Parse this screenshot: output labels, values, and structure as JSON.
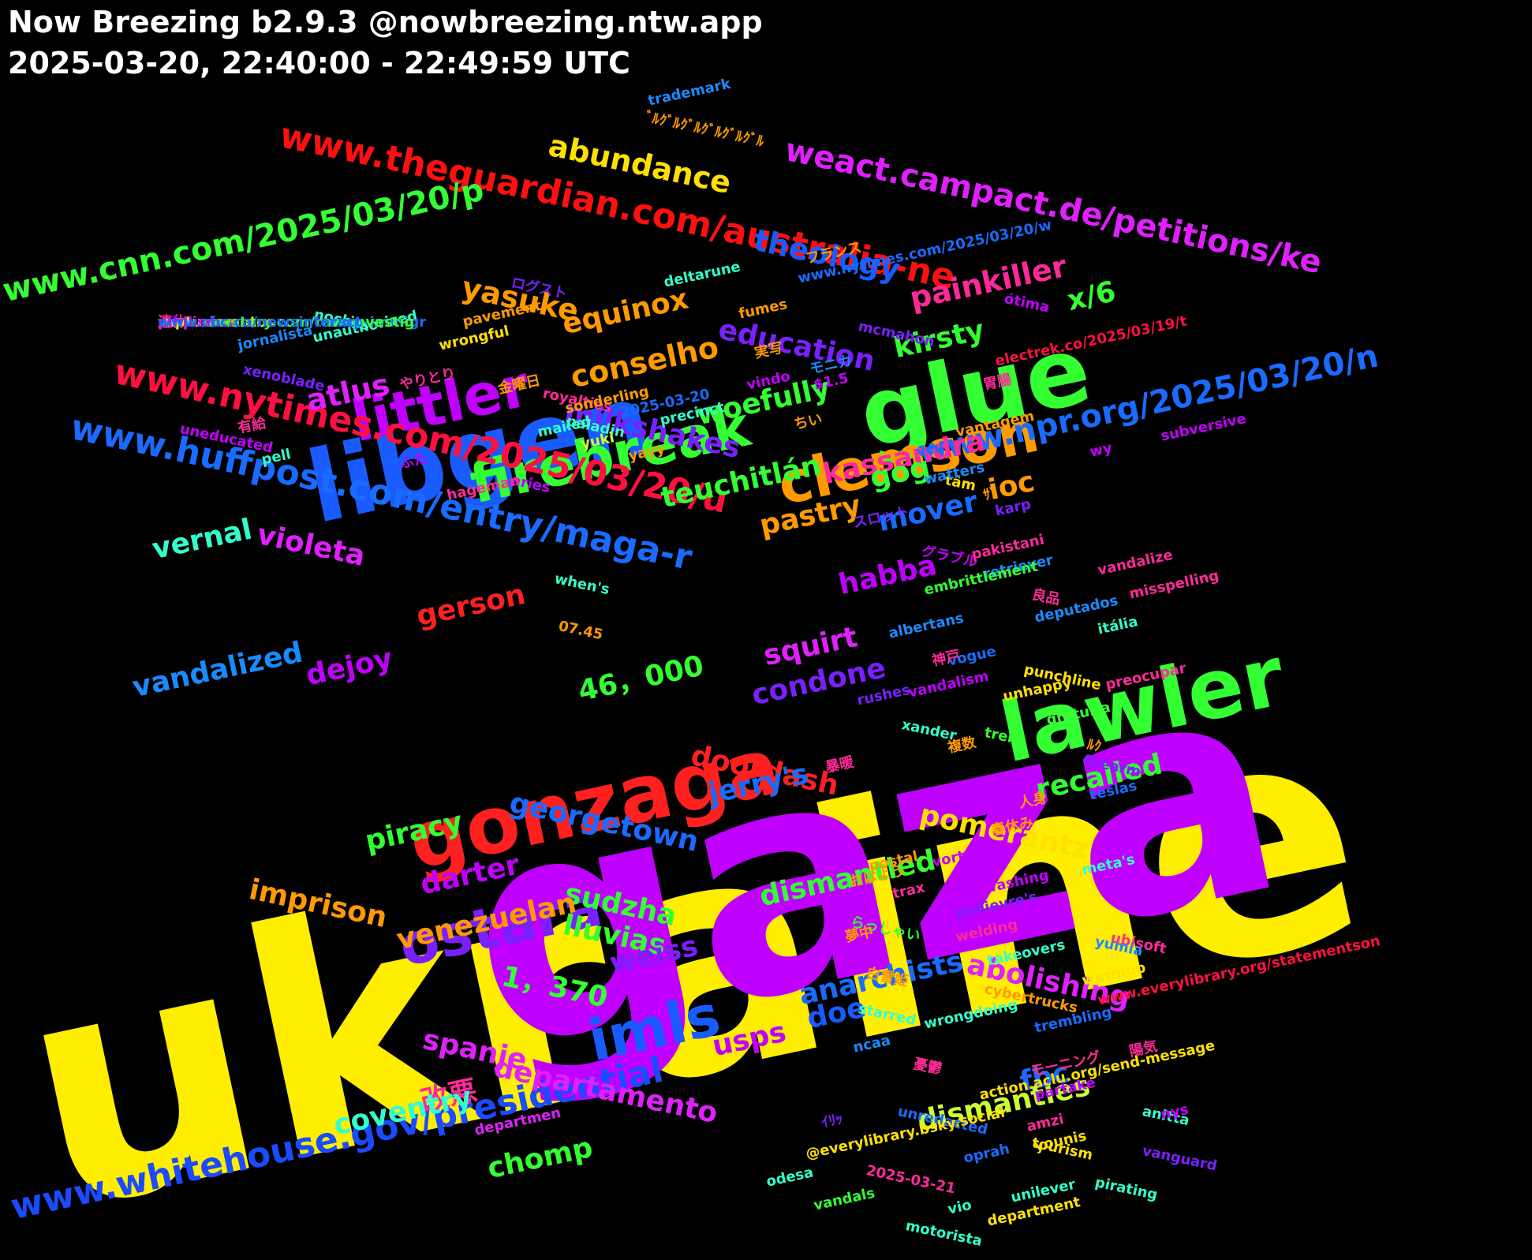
{
  "header": {
    "title": "Now Breezing b2.9.3 @nowbreezing.ntw.app",
    "time_range": "2025-03-20, 22:40:00 - 22:49:59 UTC"
  },
  "words": [
    {
      "t": "ukraine",
      "c": "#ffee00"
    },
    {
      "t": "gaza",
      "c": "#c000ff"
    },
    {
      "t": "libgen",
      "c": "#1a5bff"
    },
    {
      "t": "glue",
      "c": "#33ff33"
    },
    {
      "t": "lawler",
      "c": "#33ff33"
    },
    {
      "t": "gonzaga",
      "c": "#ff2020"
    },
    {
      "t": "clemson",
      "c": "#ff9a00"
    },
    {
      "t": "firebreak",
      "c": "#33ff33"
    },
    {
      "t": "littler",
      "c": "#c000ff"
    },
    {
      "t": "imls",
      "c": "#1a5bff"
    },
    {
      "t": "ostara",
      "c": "#7a20ff"
    },
    {
      "t": "www.theguardian.com/australia-ne",
      "c": "#ff1010"
    },
    {
      "t": "www.whitehouse.gov/presidential",
      "c": "#1a4bff"
    },
    {
      "t": "www.nytimes.com/2025/03/20/u",
      "c": "#ff1040"
    },
    {
      "t": "www.huffpost.com/entry/maga-r",
      "c": "#1a6bff"
    },
    {
      "t": "www.npr.org/2025/03/20/n",
      "c": "#1a6bff"
    },
    {
      "t": "www.cnn.com/2025/03/20/p",
      "c": "#33ff33"
    },
    {
      "t": "weact.campact.de/petitions/ke",
      "c": "#e020ff"
    },
    {
      "t": "abundance",
      "c": "#ffe000"
    },
    {
      "t": "theology",
      "c": "#1a5bff"
    },
    {
      "t": "painkiller",
      "c": "#ff2a9a"
    },
    {
      "t": "kirsty",
      "c": "#33ff33"
    },
    {
      "t": "x/6",
      "c": "#33ff33"
    },
    {
      "t": "yasuke",
      "c": "#ff9a00"
    },
    {
      "t": "equinox",
      "c": "#ff9a00"
    },
    {
      "t": "atlus",
      "c": "#e020ff"
    },
    {
      "t": "conselho",
      "c": "#ff9a00"
    },
    {
      "t": "education",
      "c": "#7a20ff"
    },
    {
      "t": "woefully",
      "c": "#33ff33"
    },
    {
      "t": "kassandra",
      "c": "#ff2a9a"
    },
    {
      "t": "gog",
      "c": "#33ff33"
    },
    {
      "t": "ioc",
      "c": "#ff9a00"
    },
    {
      "t": "milkshakes",
      "c": "#7a20ff"
    },
    {
      "t": "teuchitlán",
      "c": "#33ff33"
    },
    {
      "t": "mover",
      "c": "#1a6bff"
    },
    {
      "t": "vernal",
      "c": "#33ffcc"
    },
    {
      "t": "violeta",
      "c": "#e020ff"
    },
    {
      "t": "pastry",
      "c": "#ff9a00"
    },
    {
      "t": "habba",
      "c": "#c000ff"
    },
    {
      "t": "squirt",
      "c": "#e020ff"
    },
    {
      "t": "vandalized",
      "c": "#1a8bff"
    },
    {
      "t": "gerson",
      "c": "#ff2020"
    },
    {
      "t": "dejoy",
      "c": "#c000ff"
    },
    {
      "t": "46，000",
      "c": "#33ff33"
    },
    {
      "t": "condone",
      "c": "#7a20ff"
    },
    {
      "t": "doordash",
      "c": "#ff2020"
    },
    {
      "t": "jerry's",
      "c": "#1a6bff"
    },
    {
      "t": "georgetown",
      "c": "#1a6bff"
    },
    {
      "t": "recalled",
      "c": "#33ff33"
    },
    {
      "t": "piracy",
      "c": "#33ff33"
    },
    {
      "t": "imprison",
      "c": "#ff9a00"
    },
    {
      "t": "darter",
      "c": "#c000ff"
    },
    {
      "t": "sudzha",
      "c": "#33ff33"
    },
    {
      "t": "dismantled",
      "c": "#33ff33"
    },
    {
      "t": "pomerantz",
      "c": "#ffe000"
    },
    {
      "t": "venezuelan",
      "c": "#ff9a00"
    },
    {
      "t": "lluvias",
      "c": "#33ff33"
    },
    {
      "t": "weiss",
      "c": "#7a20ff"
    },
    {
      "t": "1，370",
      "c": "#33ff33"
    },
    {
      "t": "anarchists",
      "c": "#1a6bff"
    },
    {
      "t": "abolishing",
      "c": "#e020ff"
    },
    {
      "t": "usps",
      "c": "#c000ff"
    },
    {
      "t": "doe",
      "c": "#1a5bff"
    },
    {
      "t": "spanje",
      "c": "#e020ff"
    },
    {
      "t": "改悪",
      "c": "#ff2a9a"
    },
    {
      "t": "departamento",
      "c": "#e020ff"
    },
    {
      "t": "dismantles",
      "c": "#ccff33"
    },
    {
      "t": "fbc",
      "c": "#1a6bff"
    },
    {
      "t": "coventry",
      "c": "#33ffcc"
    },
    {
      "t": "chomp",
      "c": "#33ff33"
    },
    {
      "t": "trademark",
      "c": "#1a8bff"
    },
    {
      "t": "ﾞﾙｸﾞﾙｸﾞﾙｸﾞﾙｸﾞﾙｸﾞﾙ",
      "c": "#ff9a00"
    },
    {
      "t": "www.nytimes.com/2025/03/20/w",
      "c": "#1a6bff"
    },
    {
      "t": "ótima",
      "c": "#c000ff"
    },
    {
      "t": "フランス",
      "c": "#ff9a00"
    },
    {
      "t": "deltarune",
      "c": "#33ffcc"
    },
    {
      "t": "mcmahon",
      "c": "#7a20ff"
    },
    {
      "t": "electrek.co/2025/03/19/t",
      "c": "#ff1040"
    },
    {
      "t": "noches",
      "c": "#33ffcc"
    },
    {
      "t": "ログスト",
      "c": "#7a20ff"
    },
    {
      "t": "fumes",
      "c": "#ff9a00"
    },
    {
      "t": "unauthorized",
      "c": "#33ffcc"
    },
    {
      "t": "jornalista",
      "c": "#1a8bff"
    },
    {
      "t": "wrongful",
      "c": "#ffe000"
    },
    {
      "t": "pavement",
      "c": "#ff9a00"
    },
    {
      "t": "実写",
      "c": "#ff9a00"
    },
    {
      "t": "xenoblade",
      "c": "#7a20ff"
    },
    {
      "t": "モニカ",
      "c": "#1a8bff"
    },
    {
      "t": "$1.5",
      "c": "#c000ff"
    },
    {
      "t": "vindo",
      "c": "#c000ff"
    },
    {
      "t": "胃腸",
      "c": "#ff2a9a"
    },
    {
      "t": "やりとり",
      "c": "#ff2a9a"
    },
    {
      "t": "金曜日",
      "c": "#ff9a00"
    },
    {
      "t": "royalties",
      "c": "#ff2a9a"
    },
    {
      "t": "sonderling",
      "c": "#ff9a00"
    },
    {
      "t": "paladin",
      "c": "#33ffcc"
    },
    {
      "t": "有給",
      "c": "#ff2a9a"
    },
    {
      "t": "ちい",
      "c": "#ff9a00"
    },
    {
      "t": "2025-03-20",
      "c": "#1a6bff"
    },
    {
      "t": "subversive",
      "c": "#c000ff"
    },
    {
      "t": "uneducated",
      "c": "#c000ff"
    },
    {
      "t": "mailed",
      "c": "#33ffcc"
    },
    {
      "t": "precinct",
      "c": "#33ffcc"
    },
    {
      "t": "vantagem",
      "c": "#ff9a00"
    },
    {
      "t": "yuki",
      "c": "#ccff33"
    },
    {
      "t": "ふた",
      "c": "#c000ff"
    },
    {
      "t": "vcu",
      "c": "#1a6bff"
    },
    {
      "t": "wy",
      "c": "#c000ff"
    },
    {
      "t": "pell",
      "c": "#33ffcc"
    },
    {
      "t": "yayy",
      "c": "#ff9a00"
    },
    {
      "t": "tâm",
      "c": "#ffe000"
    },
    {
      "t": "watters",
      "c": "#1a8bff"
    },
    {
      "t": "aries",
      "c": "#c000ff"
    },
    {
      "t": "hageman",
      "c": "#ff2a9a"
    },
    {
      "t": "ｻﾞ",
      "c": "#ff9a00"
    },
    {
      "t": "karp",
      "c": "#7a20ff"
    },
    {
      "t": "スロット",
      "c": "#7a20ff"
    },
    {
      "t": "グラブル",
      "c": "#c000ff"
    },
    {
      "t": "pakistani",
      "c": "#ff2a9a"
    },
    {
      "t": "when's",
      "c": "#33ffcc"
    },
    {
      "t": "retriever",
      "c": "#1a8bff"
    },
    {
      "t": "vandalize",
      "c": "#ff2a9a"
    },
    {
      "t": "misspelling",
      "c": "#ff2a9a"
    },
    {
      "t": "良品",
      "c": "#ff2a9a"
    },
    {
      "t": "embrittlement",
      "c": "#33ff33"
    },
    {
      "t": "deputados",
      "c": "#1a8bff"
    },
    {
      "t": "itália",
      "c": "#33ffcc"
    },
    {
      "t": "vogue",
      "c": "#1a6bff"
    },
    {
      "t": "unhappy",
      "c": "#ffe000"
    },
    {
      "t": "07.45",
      "c": "#ff9a00"
    },
    {
      "t": "punchline",
      "c": "#ffe000"
    },
    {
      "t": "albertans",
      "c": "#1a8bff"
    },
    {
      "t": "rushes",
      "c": "#7a20ff"
    },
    {
      "t": "preocupar",
      "c": "#ff2a9a"
    },
    {
      "t": "神戸",
      "c": "#ff2a9a"
    },
    {
      "t": "vandalism",
      "c": "#c000ff"
    },
    {
      "t": "gratuita",
      "c": "#33ff33"
    },
    {
      "t": "trek",
      "c": "#33ff33"
    },
    {
      "t": "複数",
      "c": "#ff9a00"
    },
    {
      "t": "ﾙｸ",
      "c": "#ff9a00"
    },
    {
      "t": "xander",
      "c": "#33ffcc"
    },
    {
      "t": "firearm",
      "c": "#7a20ff"
    },
    {
      "t": "暴暖",
      "c": "#ff2a9a"
    },
    {
      "t": "人身",
      "c": "#ff9a00"
    },
    {
      "t": "teslas",
      "c": "#1a6bff"
    },
    {
      "t": "春休み",
      "c": "#ff9a00"
    },
    {
      "t": "vortex",
      "c": "#c000ff"
    },
    {
      "t": "whitewashing",
      "c": "#c000ff"
    },
    {
      "t": "postal",
      "c": "#ff9a00"
    },
    {
      "t": "trax",
      "c": "#ff2a9a"
    },
    {
      "t": "meta's",
      "c": "#33ffcc"
    },
    {
      "t": "おはよう",
      "c": "#ff9a00"
    },
    {
      "t": "poilievre's",
      "c": "#7a20ff"
    },
    {
      "t": "らっしゃい",
      "c": "#33ff33"
    },
    {
      "t": "夢中",
      "c": "#ff9a00"
    },
    {
      "t": "ubisoft",
      "c": "#ff2a9a"
    },
    {
      "t": "welding",
      "c": "#ff2a9a"
    },
    {
      "t": "yumia",
      "c": "#1a8bff"
    },
    {
      "t": "abandons",
      "c": "#c000ff"
    },
    {
      "t": "takeovers",
      "c": "#33ffcc"
    },
    {
      "t": "白雪姫",
      "c": "#ff9a00"
    },
    {
      "t": "warmup",
      "c": "#ffe000"
    },
    {
      "t": "cybertrucks",
      "c": "#ff9a00"
    },
    {
      "t": "www.everylibrary.org/statementson",
      "c": "#ff1040"
    },
    {
      "t": "starred",
      "c": "#33ffcc"
    },
    {
      "t": "wrongdoing",
      "c": "#33ffcc"
    },
    {
      "t": "trembling",
      "c": "#1a6bff"
    },
    {
      "t": "ncaa",
      "c": "#1a8bff"
    },
    {
      "t": "憂鬱",
      "c": "#ff2a9a"
    },
    {
      "t": "モーニング",
      "c": "#ff2a9a"
    },
    {
      "t": "陽気",
      "c": "#ff2a9a"
    },
    {
      "t": "partake",
      "c": "#c000ff"
    },
    {
      "t": "action.aclu.org/send-message",
      "c": "#ffe000"
    },
    {
      "t": "unredacted",
      "c": "#1a6bff"
    },
    {
      "t": "ｲﾘｯ",
      "c": "#7a20ff"
    },
    {
      "t": "anitta",
      "c": "#33ffcc"
    },
    {
      "t": "departmen",
      "c": "#e020ff"
    },
    {
      "t": "tourism",
      "c": "#ffe000"
    },
    {
      "t": "vanguard",
      "c": "#7a20ff"
    },
    {
      "t": "@everylibrary.bsky.social",
      "c": "#ffe000"
    },
    {
      "t": "2025-03-21",
      "c": "#ff2a9a"
    },
    {
      "t": "oprah",
      "c": "#1a6bff"
    },
    {
      "t": "pirating",
      "c": "#33ffcc"
    },
    {
      "t": "odesa",
      "c": "#33ffcc"
    },
    {
      "t": "unilever",
      "c": "#33ffcc"
    },
    {
      "t": "vio",
      "c": "#33ffcc"
    },
    {
      "t": "vandals",
      "c": "#33ff33"
    },
    {
      "t": "department",
      "c": "#ffe000"
    },
    {
      "t": "motorista",
      "c": "#33ffcc"
    },
    {
      "t": "amzi",
      "c": "#ff2a9a"
    },
    {
      "t": "nys",
      "c": "#c000ff"
    },
    {
      "t": "younis",
      "c": "#ffe000"
    },
    {
      "t": "連休",
      "c": "#ff2a9a"
    },
    {
      "t": "www.rawstory.com/trump-immigr",
      "c": "#1a6bff"
    },
    {
      "t": "medicamentos",
      "c": "#ffe000"
    },
    {
      "t": "pequeños",
      "c": "#ff2a9a"
    },
    {
      "t": "ruptura",
      "c": "#ffe000"
    },
    {
      "t": "www.rawstory.com/raw-investig",
      "c": "#33ff33"
    },
    {
      "t": "nihilism",
      "c": "#c000ff"
    },
    {
      "t": "www.cbc.ca/newsinteract",
      "c": "#1a6bff"
    }
  ]
}
